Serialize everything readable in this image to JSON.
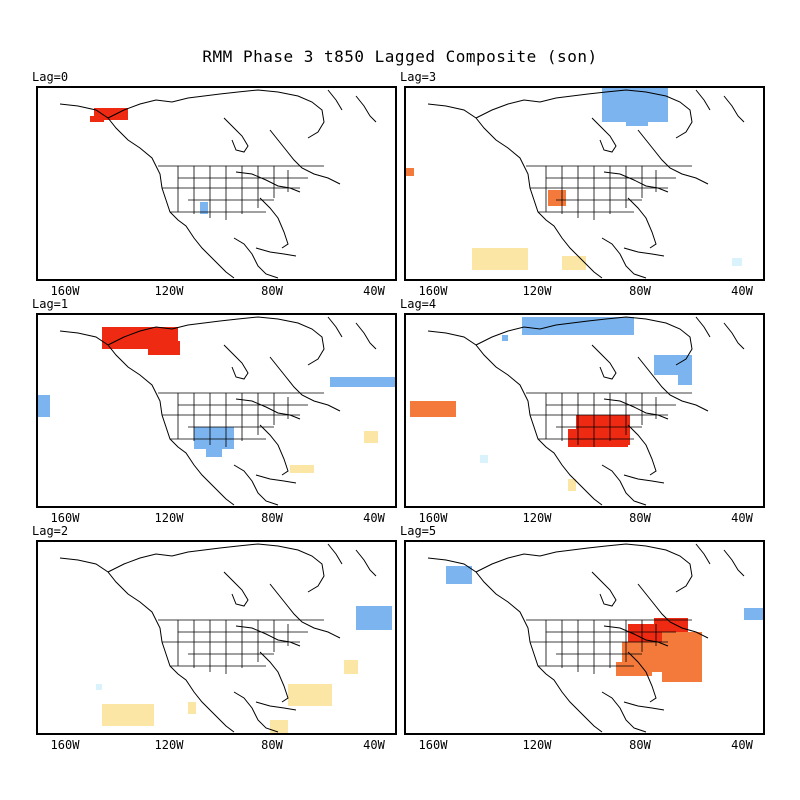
{
  "title": "RMM Phase 3 t850 Lagged Composite (son)",
  "x_ticks": [
    "160W",
    "120W",
    "80W",
    "40W"
  ],
  "colors": {
    "strong_warm": "#ee2a12",
    "warm": "#f47a3c",
    "light_warm": "#fce6a6",
    "cool": "#7bb4ee",
    "light_cool": "#d9f2fb",
    "coast": "#000000"
  },
  "panels": [
    {
      "id": "lag0",
      "label": "Lag=0"
    },
    {
      "id": "lag3",
      "label": "Lag=3"
    },
    {
      "id": "lag1",
      "label": "Lag=1"
    },
    {
      "id": "lag4",
      "label": "Lag=4"
    },
    {
      "id": "lag2",
      "label": "Lag=2"
    },
    {
      "id": "lag5",
      "label": "Lag=5"
    }
  ]
}
